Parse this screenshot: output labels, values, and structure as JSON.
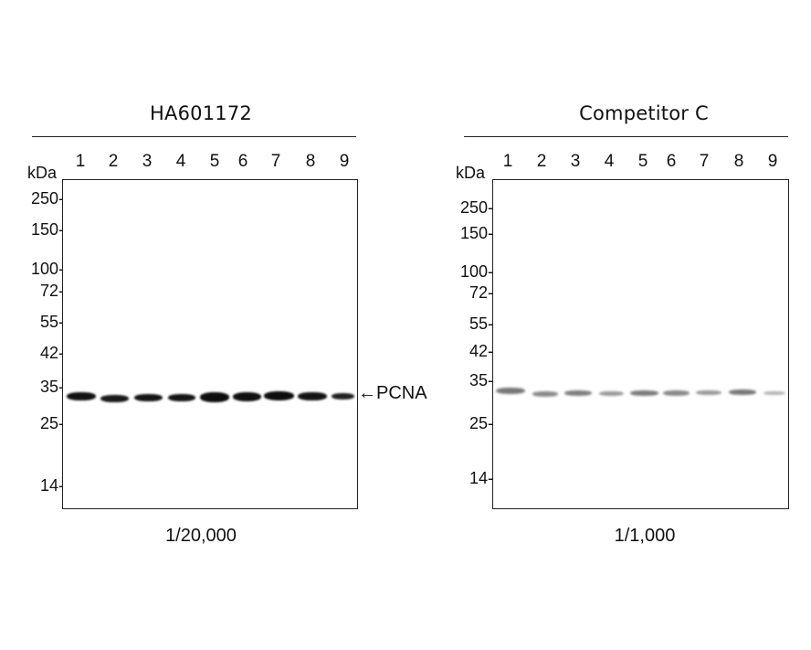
{
  "left_panel": {
    "title": "HA601172",
    "lanes": [
      "1",
      "2",
      "3",
      "4",
      "5",
      "6",
      "7",
      "8",
      "9"
    ],
    "unit": "kDa",
    "markers": [
      "250-",
      "150-",
      "100-",
      "72-",
      "55-",
      "42-",
      "35-",
      "25-",
      "14-"
    ],
    "band_label": "←PCNA",
    "dilution": "1/20,000"
  },
  "right_panel": {
    "title": "Competitor C",
    "lanes": [
      "1",
      "2",
      "3",
      "4",
      "5",
      "6",
      "7",
      "8",
      "9"
    ],
    "unit": "kDa",
    "markers": [
      "250-",
      "150-",
      "100-",
      "72-",
      "55-",
      "42-",
      "35-",
      "25-",
      "14-"
    ],
    "dilution": "1/1,000"
  }
}
